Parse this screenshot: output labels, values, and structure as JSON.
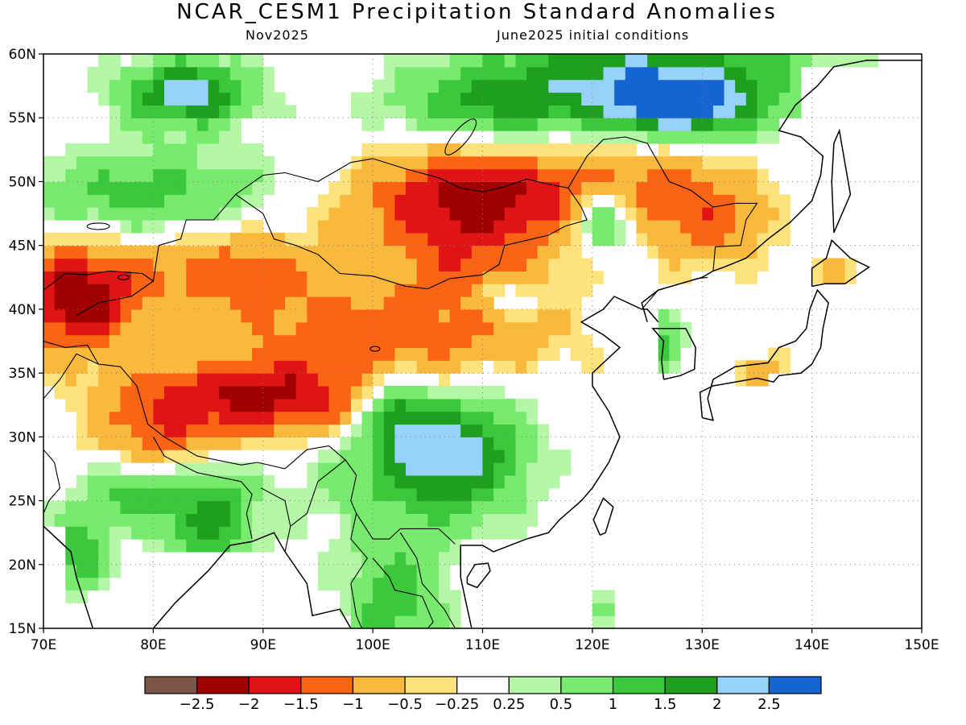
{
  "header": {
    "title": "NCAR_CESM1 Precipitation Standard Anomalies",
    "valid_month": "Nov2025",
    "init": "June2025 initial conditions"
  },
  "axes": {
    "lon_labels": [
      "70E",
      "80E",
      "90E",
      "100E",
      "110E",
      "120E",
      "130E",
      "140E",
      "150E"
    ],
    "lat_labels": [
      "60N",
      "55N",
      "50N",
      "45N",
      "40N",
      "35N",
      "30N",
      "25N",
      "20N",
      "15N"
    ],
    "lon_range": [
      70,
      150
    ],
    "lat_range": [
      15,
      60
    ]
  },
  "legend": {
    "colors": [
      "#7a5548",
      "#a00000",
      "#e01414",
      "#fa6414",
      "#f8b93c",
      "#fee27c",
      "#ffffff",
      "#b4f7a6",
      "#78ea6e",
      "#3cc83c",
      "#1ea01e",
      "#96d2fa",
      "#1464d2"
    ],
    "labels": [
      "−2.5",
      "−2",
      "−1.5",
      "−1",
      "−0.5",
      "−0.25",
      "0.25",
      "0.5",
      "1",
      "1.5",
      "2",
      "2.5"
    ]
  },
  "anomaly_fields": [
    {
      "lon": 109,
      "lat": 48.5,
      "value": -2.3,
      "sx": 7,
      "sy": 2.8
    },
    {
      "lon": 73,
      "lat": 41,
      "value": -2.4,
      "sx": 4,
      "sy": 3
    },
    {
      "lon": 90,
      "lat": 33,
      "value": -2.1,
      "sx": 8,
      "sy": 2.2
    },
    {
      "lon": 102,
      "lat": 38,
      "value": -1.3,
      "sx": 10,
      "sy": 2.5
    },
    {
      "lon": 87,
      "lat": 43,
      "value": -1.3,
      "sx": 6,
      "sy": 2.5
    },
    {
      "lon": 124,
      "lat": 50,
      "value": -1.0,
      "sx": 6,
      "sy": 3
    },
    {
      "lon": 131,
      "lat": 47,
      "value": -1.0,
      "sx": 4,
      "sy": 2.5
    },
    {
      "lon": 108,
      "lat": 43,
      "value": -0.9,
      "sx": 6,
      "sy": 2
    },
    {
      "lon": 80,
      "lat": 29,
      "value": -1.2,
      "sx": 4,
      "sy": 3
    },
    {
      "lon": 136,
      "lat": 35,
      "value": -0.8,
      "sx": 2,
      "sy": 1.5
    },
    {
      "lon": 143,
      "lat": 43,
      "value": -0.7,
      "sx": 1.5,
      "sy": 0.8
    },
    {
      "lon": 83,
      "lat": 57,
      "value": 2.3,
      "sx": 4,
      "sy": 1.8
    },
    {
      "lon": 125,
      "lat": 58,
      "value": 2.1,
      "sx": 10,
      "sy": 3
    },
    {
      "lon": 128,
      "lat": 56,
      "value": 2.2,
      "sx": 4,
      "sy": 1.5
    },
    {
      "lon": 110,
      "lat": 56,
      "value": 1.2,
      "sx": 6,
      "sy": 2
    },
    {
      "lon": 79,
      "lat": 49,
      "value": 1.2,
      "sx": 8,
      "sy": 2.5
    },
    {
      "lon": 121,
      "lat": 47,
      "value": 1.8,
      "sx": 2,
      "sy": 1.8
    },
    {
      "lon": 108,
      "lat": 29,
      "value": 1.8,
      "sx": 4,
      "sy": 3
    },
    {
      "lon": 102,
      "lat": 32,
      "value": 1.7,
      "sx": 2,
      "sy": 2
    },
    {
      "lon": 103,
      "lat": 27,
      "value": 1.0,
      "sx": 6,
      "sy": 4
    },
    {
      "lon": 78,
      "lat": 26,
      "value": 1.6,
      "sx": 3,
      "sy": 2
    },
    {
      "lon": 85,
      "lat": 24,
      "value": 1.8,
      "sx": 3,
      "sy": 3
    },
    {
      "lon": 73,
      "lat": 21,
      "value": 1.5,
      "sx": 2,
      "sy": 2
    },
    {
      "lon": 102,
      "lat": 17,
      "value": 1.3,
      "sx": 3,
      "sy": 3
    },
    {
      "lon": 126,
      "lat": 37,
      "value": 1.3,
      "sx": 1.5,
      "sy": 2
    },
    {
      "lon": 112,
      "lat": 41,
      "value": 0.8,
      "sx": 2,
      "sy": 1
    },
    {
      "lon": 121,
      "lat": 17,
      "value": 0.6,
      "sx": 1,
      "sy": 1
    }
  ],
  "ocean_mask_note": ""
}
